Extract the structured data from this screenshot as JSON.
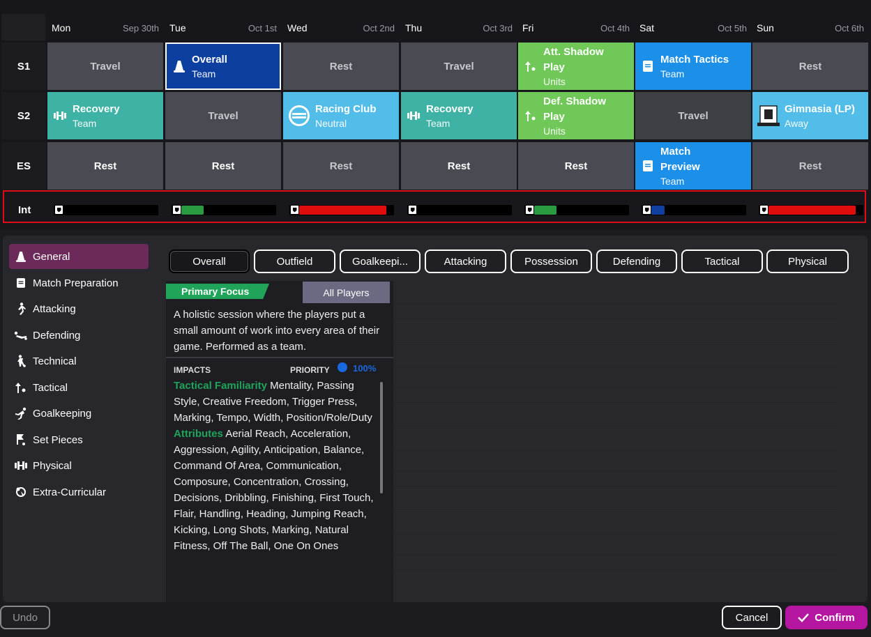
{
  "days": [
    {
      "name": "Mon",
      "date": "Sep 30th"
    },
    {
      "name": "Tue",
      "date": "Oct 1st"
    },
    {
      "name": "Wed",
      "date": "Oct 2nd"
    },
    {
      "name": "Thu",
      "date": "Oct 3rd"
    },
    {
      "name": "Fri",
      "date": "Oct 4th"
    },
    {
      "name": "Sat",
      "date": "Oct 5th"
    },
    {
      "name": "Sun",
      "date": "Oct 6th"
    }
  ],
  "rows": {
    "s1": "S1",
    "s2": "S2",
    "es": "ES",
    "int": "Int"
  },
  "sessions": {
    "s1": [
      {
        "title": "Travel"
      },
      {
        "title": "Overall",
        "sub": "Team",
        "icon": "cone-icon"
      },
      {
        "title": "Rest"
      },
      {
        "title": "Travel"
      },
      {
        "title": "Att. Shadow Play",
        "sub": "Units",
        "icon": "tactical-icon"
      },
      {
        "title": "Match Tactics",
        "sub": "Team",
        "icon": "clipboard-icon"
      },
      {
        "title": "Rest"
      }
    ],
    "s2": [
      {
        "title": "Recovery",
        "sub": "Team",
        "icon": "dumbbell-icon"
      },
      {
        "title": "Travel"
      },
      {
        "title": "Racing Club",
        "sub": "Neutral",
        "icon": "club-crest-icon"
      },
      {
        "title": "Recovery",
        "sub": "Team",
        "icon": "dumbbell-icon"
      },
      {
        "title": "Def. Shadow Play",
        "sub": "Units",
        "icon": "tactical-icon"
      },
      {
        "title": "Travel"
      },
      {
        "title": "Gimnasia (LP)",
        "sub": "Away",
        "icon": "club-crest-icon"
      }
    ],
    "es": [
      {
        "title": "Rest"
      },
      {
        "title": "Rest"
      },
      {
        "title": "Rest"
      },
      {
        "title": "Rest"
      },
      {
        "title": "Rest"
      },
      {
        "title": "Match Preview",
        "sub": "Team",
        "icon": "clipboard-icon"
      },
      {
        "title": "Rest"
      }
    ]
  },
  "intensity": [
    {
      "level": 0,
      "color": ""
    },
    {
      "level": 0.24,
      "color": "#2a9a40"
    },
    {
      "level": 0.93,
      "color": "#e00d0d"
    },
    {
      "level": 0,
      "color": ""
    },
    {
      "level": 0.24,
      "color": "#2a9a40"
    },
    {
      "level": 0.14,
      "color": "#1240a0"
    },
    {
      "level": 0.93,
      "color": "#e00d0d"
    }
  ],
  "categories": [
    {
      "label": "General",
      "icon": "cone-icon"
    },
    {
      "label": "Match Preparation",
      "icon": "clipboard-icon"
    },
    {
      "label": "Attacking",
      "icon": "runner-icon"
    },
    {
      "label": "Defending",
      "icon": "slide-tackle-icon"
    },
    {
      "label": "Technical",
      "icon": "dribble-icon"
    },
    {
      "label": "Tactical",
      "icon": "tactical-icon"
    },
    {
      "label": "Goalkeeping",
      "icon": "goalkeeper-icon"
    },
    {
      "label": "Set Pieces",
      "icon": "corner-flag-icon"
    },
    {
      "label": "Physical",
      "icon": "dumbbell-icon"
    },
    {
      "label": "Extra-Curricular",
      "icon": "extra-icon"
    }
  ],
  "tabs": [
    "Overall",
    "Outfield",
    "Goalkeepi...",
    "Attacking",
    "Possession",
    "Defending",
    "Tactical",
    "Physical"
  ],
  "detail": {
    "primary_focus": "Primary Focus",
    "all_players": "All Players",
    "description": "A holistic session where the players put a small amount of work into every area of their game. Performed as a team.",
    "impacts_label": "IMPACTS",
    "priority_label": "PRIORITY",
    "priority_value": "100%",
    "tactical_label": "Tactical Familiarity",
    "tactical_text": "Mentality, Passing Style, Creative Freedom, Trigger Press, Marking, Tempo, Width, Position/Role/Duty",
    "attributes_label": "Attributes",
    "attributes_text": "Aerial Reach, Acceleration, Aggression, Agility, Anticipation, Balance, Command Of Area, Communication, Composure, Concentration, Crossing, Decisions, Dribbling, Finishing, First Touch, Flair, Handling, Heading, Jumping Reach, Kicking, Long Shots, Marking, Natural Fitness, Off The Ball, One On Ones"
  },
  "buttons": {
    "undo": "Undo",
    "cancel": "Cancel",
    "confirm": "Confirm"
  },
  "colors": {
    "accent": "#b4169f",
    "intensity_box_border": "#e00d18",
    "focus_green": "#1fa45a"
  }
}
